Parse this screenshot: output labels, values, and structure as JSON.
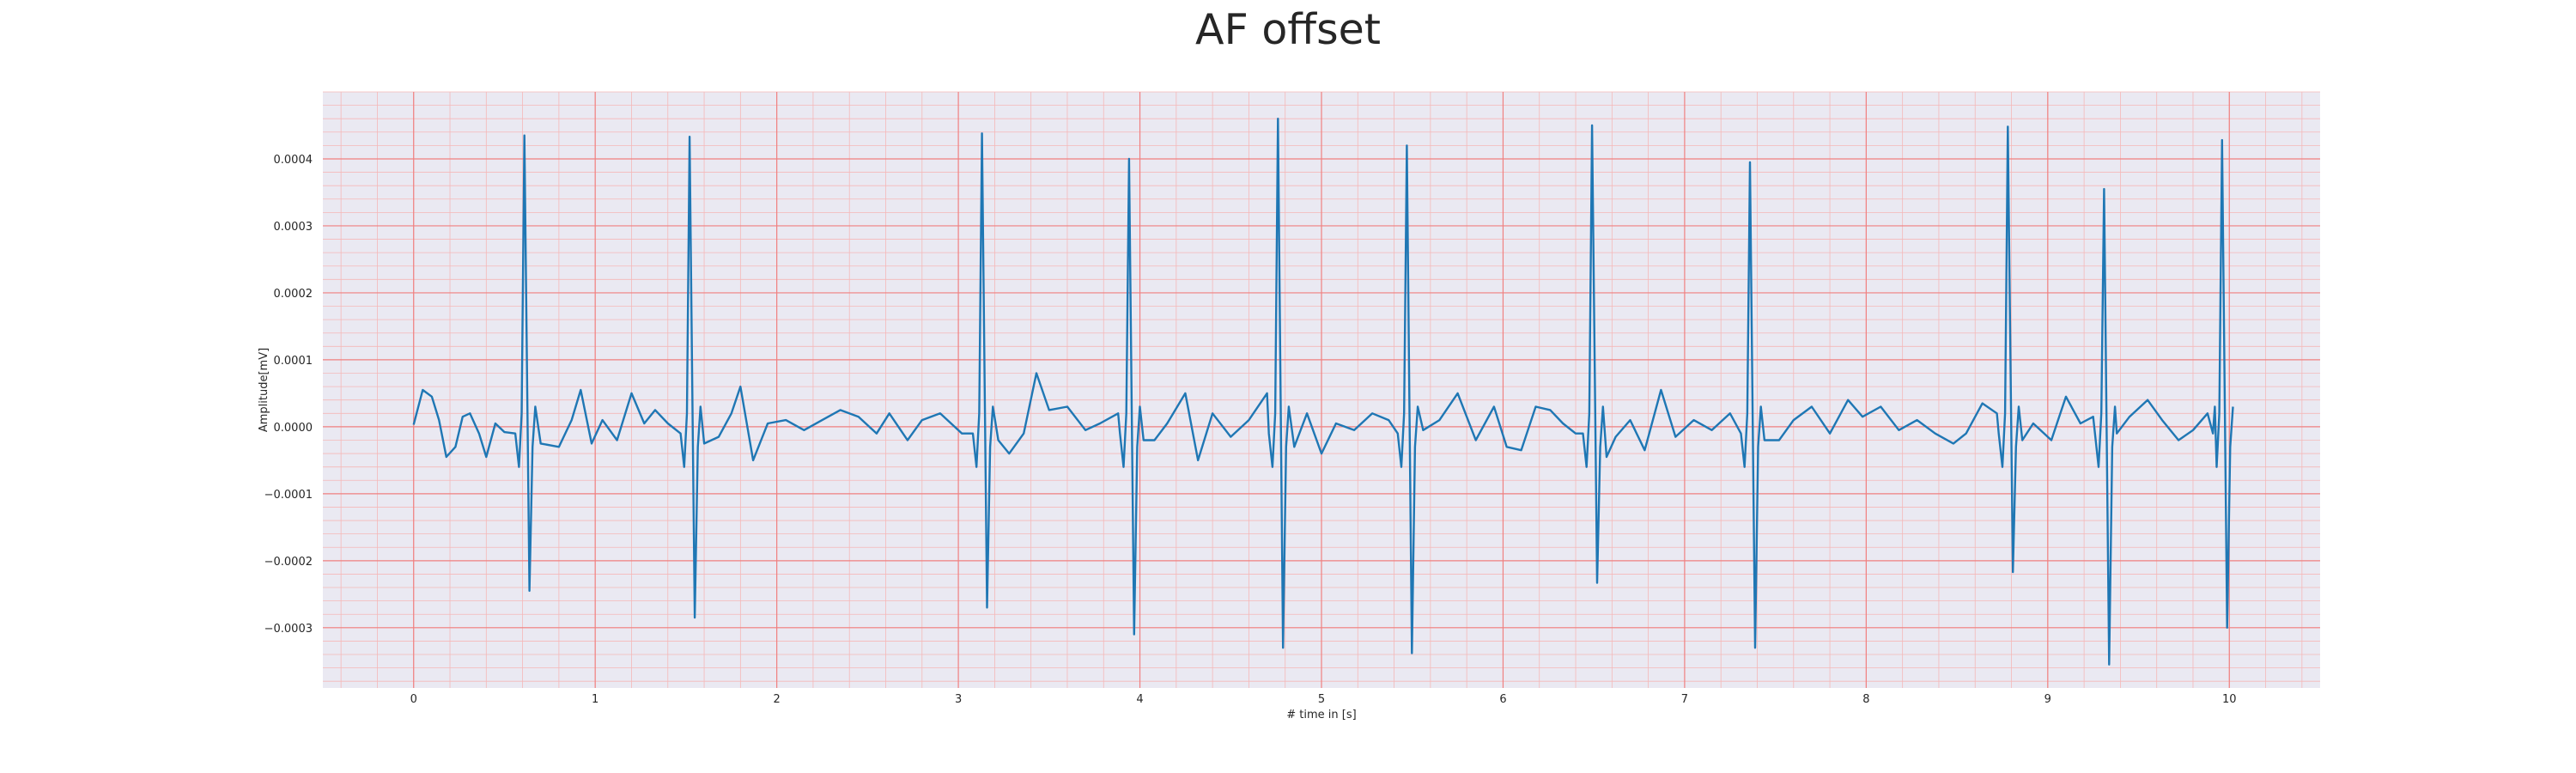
{
  "chart_data": {
    "type": "line",
    "title": "AF offset",
    "xlabel": "# time in [s]",
    "ylabel": "Amplitude[mV]",
    "xlim": [
      -0.5,
      10.5
    ],
    "ylim": [
      -0.00039,
      0.0005
    ],
    "x_ticks": [
      "0",
      "1",
      "2",
      "3",
      "4",
      "5",
      "6",
      "7",
      "8",
      "9",
      "10"
    ],
    "y_ticks": [
      "−0.0003",
      "−0.0002",
      "−0.0001",
      "0.0000",
      "0.0001",
      "0.0002",
      "0.0003",
      "0.0004"
    ],
    "grid": true,
    "colors": {
      "background": "#eae9f2",
      "major_grid": "#f08080",
      "minor_grid": "#f5b8b8",
      "line": "#1f77b4"
    },
    "beats": [
      {
        "t": 0.61,
        "r": 0.000435,
        "s": -0.000245
      },
      {
        "t": 1.52,
        "r": 0.000433,
        "s": -0.000285
      },
      {
        "t": 3.13,
        "r": 0.000438,
        "s": -0.00027
      },
      {
        "t": 3.94,
        "r": 0.0004,
        "s": -0.00031
      },
      {
        "t": 4.76,
        "r": 0.00046,
        "s": -0.00033
      },
      {
        "t": 5.47,
        "r": 0.00042,
        "s": -0.000338
      },
      {
        "t": 6.49,
        "r": 0.00045,
        "s": -0.000233
      },
      {
        "t": 7.36,
        "r": 0.000395,
        "s": -0.00033
      },
      {
        "t": 8.78,
        "r": 0.000448,
        "s": -0.000217
      },
      {
        "t": 9.31,
        "r": 0.000355,
        "s": -0.000355
      },
      {
        "t": 9.96,
        "r": 0.000428,
        "s": -0.0003
      }
    ],
    "baseline": [
      [
        0.0,
        3e-06
      ],
      [
        0.05,
        5.5e-05
      ],
      [
        0.1,
        4.5e-05
      ],
      [
        0.14,
        1e-05
      ],
      [
        0.18,
        -4.5e-05
      ],
      [
        0.23,
        -3e-05
      ],
      [
        0.27,
        1.5e-05
      ],
      [
        0.31,
        2e-05
      ],
      [
        0.36,
        -1e-05
      ],
      [
        0.4,
        -4.5e-05
      ],
      [
        0.45,
        5e-06
      ],
      [
        0.5,
        -8e-06
      ],
      [
        0.7,
        -2.5e-05
      ],
      [
        0.8,
        -3e-05
      ],
      [
        0.87,
        1e-05
      ],
      [
        0.92,
        5.5e-05
      ],
      [
        0.98,
        -2.5e-05
      ],
      [
        1.04,
        1e-05
      ],
      [
        1.12,
        -2e-05
      ],
      [
        1.2,
        5e-05
      ],
      [
        1.27,
        5e-06
      ],
      [
        1.33,
        2.5e-05
      ],
      [
        1.4,
        5e-06
      ],
      [
        1.6,
        -2.5e-05
      ],
      [
        1.68,
        -1.5e-05
      ],
      [
        1.75,
        2e-05
      ],
      [
        1.8,
        6e-05
      ],
      [
        1.87,
        -5e-05
      ],
      [
        1.95,
        5e-06
      ],
      [
        2.05,
        1e-05
      ],
      [
        2.15,
        -5e-06
      ],
      [
        2.25,
        1e-05
      ],
      [
        2.35,
        2.5e-05
      ],
      [
        2.45,
        1.5e-05
      ],
      [
        2.55,
        -1e-05
      ],
      [
        2.62,
        2e-05
      ],
      [
        2.72,
        -2e-05
      ],
      [
        2.8,
        1e-05
      ],
      [
        2.9,
        2e-05
      ],
      [
        3.02,
        -1e-05
      ],
      [
        3.22,
        -2e-05
      ],
      [
        3.28,
        -4e-05
      ],
      [
        3.36,
        -1e-05
      ],
      [
        3.43,
        8e-05
      ],
      [
        3.5,
        2.5e-05
      ],
      [
        3.6,
        3e-05
      ],
      [
        3.7,
        -5e-06
      ],
      [
        3.78,
        5e-06
      ],
      [
        3.88,
        2e-05
      ],
      [
        4.02,
        -2e-05
      ],
      [
        4.08,
        -2e-05
      ],
      [
        4.15,
        5e-06
      ],
      [
        4.25,
        5e-05
      ],
      [
        4.32,
        -5e-05
      ],
      [
        4.4,
        2e-05
      ],
      [
        4.5,
        -1.5e-05
      ],
      [
        4.6,
        1e-05
      ],
      [
        4.7,
        5e-05
      ],
      [
        4.85,
        -3e-05
      ],
      [
        4.92,
        2e-05
      ],
      [
        5.0,
        -4e-05
      ],
      [
        5.08,
        5e-06
      ],
      [
        5.18,
        -5e-06
      ],
      [
        5.28,
        2e-05
      ],
      [
        5.37,
        1e-05
      ],
      [
        5.56,
        -5e-06
      ],
      [
        5.65,
        1e-05
      ],
      [
        5.75,
        5e-05
      ],
      [
        5.85,
        -2e-05
      ],
      [
        5.95,
        3e-05
      ],
      [
        6.02,
        -3e-05
      ],
      [
        6.1,
        -3.5e-05
      ],
      [
        6.18,
        3e-05
      ],
      [
        6.26,
        2.5e-05
      ],
      [
        6.33,
        5e-06
      ],
      [
        6.4,
        -1e-05
      ],
      [
        6.57,
        -4.5e-05
      ],
      [
        6.62,
        -1.5e-05
      ],
      [
        6.7,
        1e-05
      ],
      [
        6.78,
        -3.5e-05
      ],
      [
        6.87,
        5.5e-05
      ],
      [
        6.95,
        -1.5e-05
      ],
      [
        7.05,
        1e-05
      ],
      [
        7.15,
        -5e-06
      ],
      [
        7.25,
        2e-05
      ],
      [
        7.44,
        -2e-05
      ],
      [
        7.52,
        -2e-05
      ],
      [
        7.6,
        1e-05
      ],
      [
        7.7,
        3e-05
      ],
      [
        7.8,
        -1e-05
      ],
      [
        7.9,
        4e-05
      ],
      [
        7.98,
        1.5e-05
      ],
      [
        8.08,
        3e-05
      ],
      [
        8.18,
        -5e-06
      ],
      [
        8.28,
        1e-05
      ],
      [
        8.38,
        -1e-05
      ],
      [
        8.48,
        -2.5e-05
      ],
      [
        8.55,
        -1e-05
      ],
      [
        8.64,
        3.5e-05
      ],
      [
        8.72,
        2e-05
      ],
      [
        8.86,
        -2e-05
      ],
      [
        8.92,
        5e-06
      ],
      [
        9.02,
        -2e-05
      ],
      [
        9.1,
        4.5e-05
      ],
      [
        9.18,
        5e-06
      ],
      [
        9.25,
        1.5e-05
      ],
      [
        9.38,
        -1e-05
      ],
      [
        9.45,
        1.5e-05
      ],
      [
        9.55,
        4e-05
      ],
      [
        9.63,
        1e-05
      ],
      [
        9.72,
        -2e-05
      ],
      [
        9.8,
        -5e-06
      ],
      [
        9.88,
        2e-05
      ],
      [
        9.92,
        3e-05
      ]
    ]
  }
}
